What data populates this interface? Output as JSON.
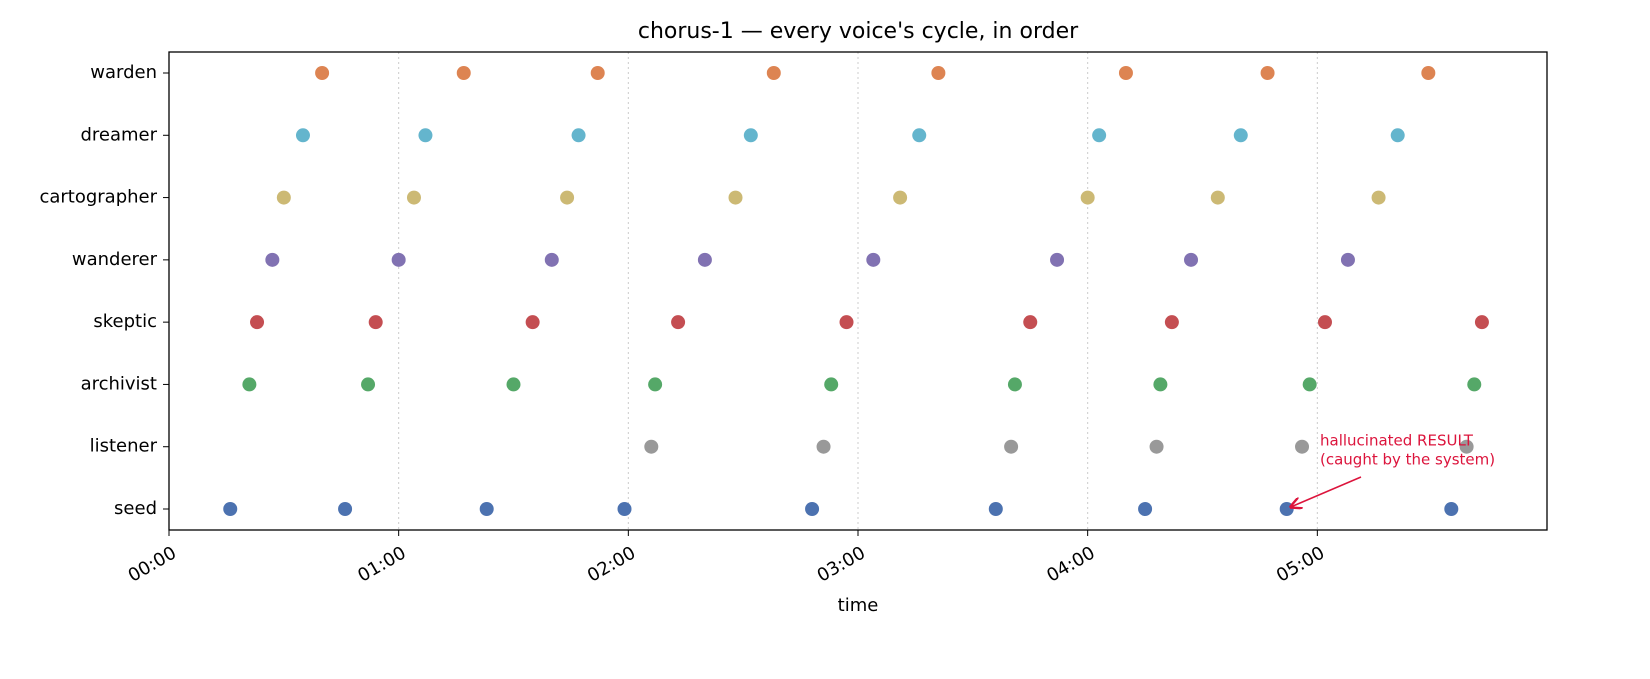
{
  "chart_data": {
    "type": "scatter",
    "title": "chorus-1 — every voice's cycle, in order",
    "xlabel": "time",
    "xlim": [
      0,
      360
    ],
    "xticks": [
      {
        "value": 0,
        "label": "00:00"
      },
      {
        "value": 60,
        "label": "01:00"
      },
      {
        "value": 120,
        "label": "02:00"
      },
      {
        "value": 180,
        "label": "03:00"
      },
      {
        "value": 240,
        "label": "04:00"
      },
      {
        "value": 300,
        "label": "05:00"
      }
    ],
    "grid": true,
    "series": [
      {
        "name": "seed",
        "color": "#4c72b0",
        "x": [
          16,
          46,
          83,
          119,
          168,
          216,
          255,
          292,
          335
        ]
      },
      {
        "name": "listener",
        "color": "#999999",
        "x": [
          126,
          171,
          220,
          258,
          296,
          339
        ]
      },
      {
        "name": "archivist",
        "color": "#55a868",
        "x": [
          21,
          52,
          90,
          127,
          173,
          221,
          259,
          298,
          341
        ]
      },
      {
        "name": "skeptic",
        "color": "#c44e52",
        "x": [
          23,
          54,
          95,
          133,
          177,
          225,
          262,
          302,
          343
        ]
      },
      {
        "name": "wanderer",
        "color": "#8172b2",
        "x": [
          27,
          60,
          100,
          140,
          184,
          232,
          267,
          308
        ]
      },
      {
        "name": "cartographer",
        "color": "#ccb974",
        "x": [
          30,
          64,
          104,
          148,
          191,
          240,
          274,
          316
        ]
      },
      {
        "name": "dreamer",
        "color": "#64b5cd",
        "x": [
          35,
          67,
          107,
          152,
          196,
          243,
          280,
          321
        ]
      },
      {
        "name": "warden",
        "color": "#dd8452",
        "x": [
          40,
          77,
          112,
          158,
          201,
          250,
          287,
          329
        ]
      }
    ],
    "annotation": {
      "lines": [
        "hallucinated RESULT",
        "(caught by the system)"
      ],
      "color": "#dc143c"
    }
  }
}
